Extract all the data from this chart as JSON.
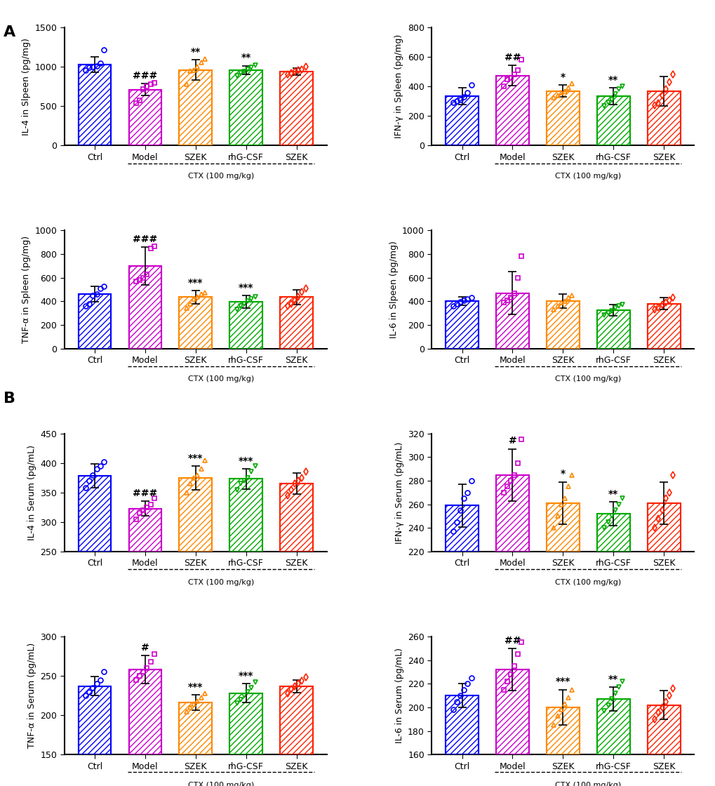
{
  "colors": {
    "Ctrl": "#0000FF",
    "Model": "#CC00CC",
    "SZEK_orange": "#FF8800",
    "rhG_CSF": "#00AA00",
    "SZEK_red": "#FF2200"
  },
  "categories": [
    "Ctrl",
    "Model",
    "SZEK",
    "rhG-CSF",
    "SZEK"
  ],
  "panel_A": {
    "IL4_spleen": {
      "means": [
        1030,
        710,
        960,
        960,
        940
      ],
      "errors": [
        100,
        75,
        130,
        55,
        45
      ],
      "ylim": [
        0,
        1500
      ],
      "yticks": [
        0,
        500,
        1000,
        1500
      ],
      "ylabel": "IL-4 in Slpeen (pg/mg)",
      "sig_above": [
        "",
        "###",
        "**",
        "**",
        ""
      ]
    },
    "IFNg_spleen": {
      "means": [
        335,
        475,
        370,
        335,
        370
      ],
      "errors": [
        55,
        70,
        40,
        55,
        100
      ],
      "ylim": [
        0,
        800
      ],
      "yticks": [
        0,
        200,
        400,
        600,
        800
      ],
      "ylabel": "IFN-γ in Spleen (pg/mg)",
      "sig_above": [
        "",
        "##",
        "*",
        "**",
        ""
      ]
    },
    "TNFa_spleen": {
      "means": [
        460,
        700,
        435,
        395,
        435
      ],
      "errors": [
        65,
        160,
        55,
        55,
        65
      ],
      "ylim": [
        0,
        1000
      ],
      "yticks": [
        0,
        200,
        400,
        600,
        800,
        1000
      ],
      "ylabel": "TNF-α in Spleen (pg/mg)",
      "sig_above": [
        "",
        "###",
        "***",
        "***",
        ""
      ]
    },
    "IL6_spleen": {
      "means": [
        400,
        470,
        400,
        325,
        380
      ],
      "errors": [
        35,
        180,
        60,
        45,
        50
      ],
      "ylim": [
        0,
        1000
      ],
      "yticks": [
        0,
        200,
        400,
        600,
        800,
        1000
      ],
      "ylabel": "IL-6 in Slpeen (pg/mg)",
      "sig_above": [
        "",
        "",
        "",
        "",
        ""
      ]
    }
  },
  "panel_B": {
    "IL4_serum": {
      "means": [
        378,
        323,
        375,
        373,
        365
      ],
      "errors": [
        20,
        12,
        20,
        17,
        18
      ],
      "ylim": [
        250,
        450
      ],
      "yticks": [
        250,
        300,
        350,
        400,
        450
      ],
      "ylabel": "IL-4 in Serum (pg/mL)",
      "sig_above": [
        "",
        "###",
        "***",
        "***",
        ""
      ]
    },
    "IFNg_serum": {
      "means": [
        259,
        285,
        261,
        252,
        261
      ],
      "errors": [
        18,
        22,
        18,
        10,
        18
      ],
      "ylim": [
        220,
        320
      ],
      "yticks": [
        220,
        240,
        260,
        280,
        300,
        320
      ],
      "ylabel": "IFN-γ in Serum (pg/mL)",
      "sig_above": [
        "",
        "#",
        "*",
        "**",
        ""
      ]
    },
    "TNFa_serum": {
      "means": [
        237,
        258,
        216,
        228,
        237
      ],
      "errors": [
        12,
        18,
        10,
        12,
        8
      ],
      "ylim": [
        150,
        300
      ],
      "yticks": [
        150,
        200,
        250,
        300
      ],
      "ylabel": "TNF-α in Serum (pg/mL)",
      "sig_above": [
        "",
        "#",
        "***",
        "***",
        ""
      ]
    },
    "IL6_serum": {
      "means": [
        210,
        232,
        200,
        207,
        202
      ],
      "errors": [
        10,
        18,
        15,
        10,
        12
      ],
      "ylim": [
        160,
        260
      ],
      "yticks": [
        160,
        180,
        200,
        220,
        240,
        260
      ],
      "ylabel": "IL-6 in Serum (pg/mL)",
      "sig_above": [
        "",
        "##",
        "***",
        "**",
        ""
      ]
    }
  },
  "scatter_data": {
    "IL4_spleen": {
      "Ctrl": [
        960,
        990,
        1000,
        1010,
        1050,
        1220
      ],
      "Model": [
        540,
        570,
        720,
        750,
        780,
        800
      ],
      "SZEK_orange": [
        780,
        950,
        960,
        1000,
        1060,
        1100
      ],
      "rhG_CSF": [
        890,
        920,
        940,
        970,
        990,
        1020
      ],
      "SZEK_red": [
        900,
        920,
        940,
        960,
        970,
        1000
      ]
    },
    "IFNg_spleen": {
      "Ctrl": [
        290,
        300,
        310,
        330,
        360,
        410
      ],
      "Model": [
        400,
        450,
        460,
        480,
        510,
        580
      ],
      "SZEK_orange": [
        325,
        340,
        360,
        370,
        390,
        420
      ],
      "rhG_CSF": [
        270,
        290,
        310,
        350,
        380,
        400
      ],
      "SZEK_red": [
        275,
        285,
        340,
        380,
        430,
        480
      ]
    },
    "TNFa_spleen": {
      "Ctrl": [
        360,
        380,
        450,
        460,
        510,
        525
      ],
      "Model": [
        570,
        580,
        600,
        630,
        850,
        865
      ],
      "SZEK_orange": [
        340,
        380,
        420,
        440,
        460,
        475
      ],
      "rhG_CSF": [
        330,
        360,
        380,
        400,
        420,
        440
      ],
      "SZEK_red": [
        360,
        380,
        410,
        440,
        480,
        510
      ]
    },
    "IL6_spleen": {
      "Ctrl": [
        360,
        380,
        395,
        410,
        420,
        430
      ],
      "Model": [
        390,
        410,
        430,
        470,
        600,
        780
      ],
      "SZEK_orange": [
        330,
        360,
        390,
        400,
        430,
        450
      ],
      "rhG_CSF": [
        285,
        300,
        320,
        340,
        360,
        375
      ],
      "SZEK_red": [
        330,
        350,
        370,
        390,
        410,
        430
      ]
    },
    "IL4_serum": {
      "Ctrl": [
        358,
        370,
        380,
        390,
        395,
        402
      ],
      "Model": [
        305,
        315,
        320,
        325,
        330,
        340
      ],
      "SZEK_orange": [
        350,
        365,
        375,
        380,
        390,
        405
      ],
      "rhG_CSF": [
        355,
        365,
        370,
        375,
        385,
        395
      ],
      "SZEK_red": [
        345,
        355,
        365,
        370,
        375,
        385
      ]
    },
    "IFNg_serum": {
      "Ctrl": [
        237,
        245,
        255,
        265,
        270,
        280
      ],
      "Model": [
        270,
        275,
        280,
        285,
        295,
        315
      ],
      "SZEK_orange": [
        240,
        250,
        260,
        265,
        275,
        285
      ],
      "rhG_CSF": [
        240,
        245,
        250,
        255,
        260,
        265
      ],
      "SZEK_red": [
        240,
        248,
        255,
        265,
        270,
        285
      ]
    },
    "TNFa_serum": {
      "Ctrl": [
        225,
        230,
        235,
        240,
        245,
        255
      ],
      "Model": [
        245,
        250,
        255,
        260,
        268,
        278
      ],
      "SZEK_orange": [
        205,
        210,
        214,
        218,
        222,
        228
      ],
      "rhG_CSF": [
        215,
        220,
        225,
        230,
        235,
        242
      ],
      "SZEK_red": [
        228,
        233,
        237,
        240,
        244,
        248
      ]
    },
    "IL6_serum": {
      "Ctrl": [
        198,
        205,
        210,
        215,
        220,
        225
      ],
      "Model": [
        215,
        222,
        228,
        235,
        245,
        255
      ],
      "SZEK_orange": [
        185,
        193,
        198,
        203,
        208,
        215
      ],
      "rhG_CSF": [
        197,
        202,
        207,
        212,
        217,
        222
      ],
      "SZEK_red": [
        190,
        196,
        200,
        205,
        210,
        216
      ]
    }
  }
}
